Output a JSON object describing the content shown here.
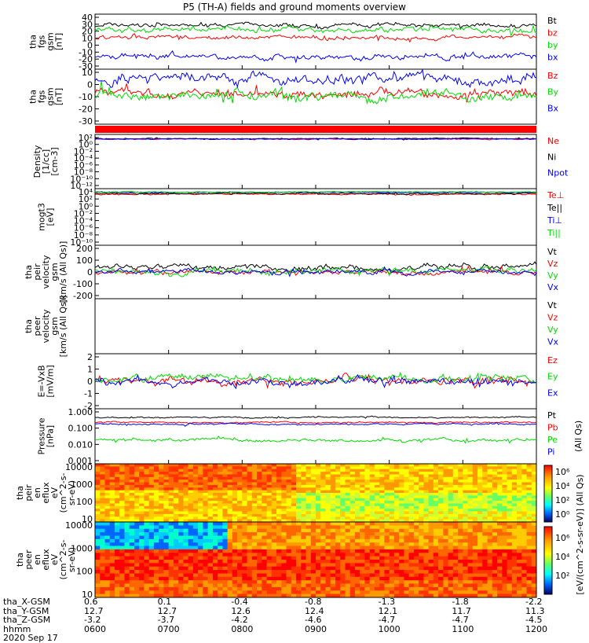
{
  "title": "P5 (TH-A) fields and ground moments overview",
  "colors": {
    "black": "#000000",
    "red": "#ff0000",
    "green": "#00dd00",
    "blue": "#0000ff"
  },
  "chart_data": [
    {
      "type": "line",
      "panel": "fgs",
      "ylabel": [
        "tha",
        "fgs",
        "gsm",
        "[nT]"
      ],
      "ylim": [
        -30,
        40
      ],
      "yticks": [
        "40",
        "30",
        "20",
        "10",
        "0",
        "-10",
        "-20",
        "-30"
      ],
      "series": [
        {
          "name": "Bt",
          "color": "black",
          "level": 26,
          "noise": 3
        },
        {
          "name": "bz",
          "color": "red",
          "level": 10,
          "noise": 3
        },
        {
          "name": "by",
          "color": "green",
          "level": 20,
          "noise": 4
        },
        {
          "name": "bx",
          "color": "blue",
          "level": -14,
          "noise": 4
        }
      ]
    },
    {
      "type": "line",
      "panel": "fgs_gse",
      "ylabel": [
        "tha",
        "fgs",
        "gsm",
        "[nT]"
      ],
      "ylim": [
        -35,
        10
      ],
      "yticks": [
        "10",
        "0",
        "-10",
        "-20",
        "-30"
      ],
      "series": [
        {
          "name": "Bz",
          "color": "red",
          "level": -10,
          "noise": 4
        },
        {
          "name": "By",
          "color": "green",
          "level": -12,
          "noise": 5
        },
        {
          "name": "Bx",
          "color": "blue",
          "level": 2,
          "noise": 5
        }
      ]
    },
    {
      "type": "line",
      "panel": "density",
      "ylabel": [
        "Density",
        "[1/cc]",
        "[cm-3]"
      ],
      "ylim": [
        -12,
        2
      ],
      "yticks": [
        "10²",
        "10⁰",
        "10⁻²",
        "10⁻⁴",
        "10⁻⁶",
        "10⁻⁸",
        "10⁻¹⁰",
        "10⁻¹²"
      ],
      "series": [
        {
          "name": "Ne",
          "color": "red",
          "level": 0.8,
          "noise": 0.15
        },
        {
          "name": "Ni",
          "color": "black",
          "level": 0.9,
          "noise": 0.15
        },
        {
          "name": "Npot",
          "color": "blue",
          "level": 0.85,
          "noise": 0.15
        }
      ]
    },
    {
      "type": "line",
      "panel": "temperature",
      "ylabel": [
        "mogt3",
        "[eV]"
      ],
      "ylim": [
        -10,
        4
      ],
      "yticks": [
        "10⁴",
        "10²",
        "10⁰",
        "10⁻²",
        "10⁻⁴",
        "10⁻⁶",
        "10⁻⁸",
        "10⁻¹⁰"
      ],
      "series": [
        {
          "name": "Te⊥",
          "color": "red",
          "level": 2.6,
          "noise": 0.2
        },
        {
          "name": "Te||",
          "color": "black",
          "level": 2.8,
          "noise": 0.2
        },
        {
          "name": "Ti⊥",
          "color": "blue",
          "level": 3.1,
          "noise": 0.1
        },
        {
          "name": "Ti||",
          "color": "green",
          "level": 3.2,
          "noise": 0.1
        }
      ]
    },
    {
      "type": "line",
      "panel": "peir_velocity",
      "ylabel": [
        "tha",
        "peir",
        "velocity",
        "gsm",
        "[km/s (All Qs)]"
      ],
      "ylim": [
        -200,
        200
      ],
      "yticks": [
        "200",
        "100",
        "0",
        "-100",
        "-200"
      ],
      "series": [
        {
          "name": "Vt",
          "color": "black",
          "level": 40,
          "noise": 25
        },
        {
          "name": "Vz",
          "color": "red",
          "level": 0,
          "noise": 20
        },
        {
          "name": "Vy",
          "color": "green",
          "level": 5,
          "noise": 25
        },
        {
          "name": "Vx",
          "color": "blue",
          "level": 0,
          "noise": 20
        }
      ]
    },
    {
      "type": "line",
      "panel": "peer_velocity",
      "ylabel": [
        "tha",
        "peer",
        "velocity",
        "gsm",
        "[km/s (All Qs)]"
      ],
      "ylim": [
        -200,
        200
      ],
      "yticks": [],
      "series": [
        {
          "name": "Vt",
          "color": "black"
        },
        {
          "name": "Vz",
          "color": "red"
        },
        {
          "name": "Vy",
          "color": "green"
        },
        {
          "name": "Vx",
          "color": "blue"
        }
      ]
    },
    {
      "type": "line",
      "panel": "efield",
      "ylabel": [
        "E=-VxB",
        "[mV/m]"
      ],
      "ylim": [
        -2.5,
        2.5
      ],
      "yticks": [
        "2",
        "1",
        "0",
        "-1",
        "-2"
      ],
      "series": [
        {
          "name": "Ez",
          "color": "red",
          "level": 0,
          "noise": 0.4
        },
        {
          "name": "Ey",
          "color": "green",
          "level": 0.3,
          "noise": 0.4
        },
        {
          "name": "Ex",
          "color": "blue",
          "level": 0,
          "noise": 0.4
        }
      ]
    },
    {
      "type": "line",
      "panel": "pressure",
      "ylabel": [
        "Pressure",
        "[nPa]"
      ],
      "ylim": [
        -3,
        0.2
      ],
      "log": true,
      "yticks": [
        "1.000",
        "0.100",
        "0.010",
        "0.001"
      ],
      "series": [
        {
          "name": "Pt",
          "color": "black",
          "level": -0.3,
          "noise": 0.05
        },
        {
          "name": "Pb",
          "color": "red",
          "level": -0.6,
          "noise": 0.05
        },
        {
          "name": "Pe",
          "color": "green",
          "level": -1.6,
          "noise": 0.1
        },
        {
          "name": "Pi",
          "color": "blue",
          "level": -0.7,
          "noise": 0.05
        }
      ],
      "side_label": "(All Qs)"
    },
    {
      "type": "heatmap",
      "panel": "peir_spectrogram",
      "ylabel": [
        "tha",
        "peir",
        "en",
        "eflux",
        "eV",
        "(cm^2-s-",
        "sr-eV)"
      ],
      "yticks": [
        "10000",
        "1000",
        "100",
        "10"
      ]
    },
    {
      "type": "heatmap",
      "panel": "peer_spectrogram",
      "ylabel": [
        "tha",
        "peer",
        "en",
        "eflux",
        "eV",
        "(cm^2-s-",
        "sr-eV)"
      ],
      "yticks": [
        "10000",
        "1000",
        "100",
        "10"
      ]
    }
  ],
  "colorbar": {
    "ticks1": [
      "10⁶",
      "10⁴",
      "10²",
      "10⁰"
    ],
    "ticks2": [
      "10⁶",
      "10⁴",
      "10²"
    ],
    "label": "[eV/(cm^2-s-sr-eV)] (All Qs)"
  },
  "footer": {
    "rows": [
      {
        "label": "tha_X-GSM",
        "values": [
          "0.6",
          "0.1",
          "-0.4",
          "-0.8",
          "-1.3",
          "-1.8",
          "-2.2"
        ]
      },
      {
        "label": "tha_Y-GSM",
        "values": [
          "12.7",
          "12.7",
          "12.6",
          "12.4",
          "12.1",
          "11.7",
          "11.3"
        ]
      },
      {
        "label": "tha_Z-GSM",
        "values": [
          "-3.2",
          "-3.7",
          "-4.2",
          "-4.6",
          "-4.7",
          "-4.7",
          "-4.5"
        ]
      },
      {
        "label": "hhmm",
        "values": [
          "0600",
          "0700",
          "0800",
          "0900",
          "1000",
          "1100",
          "1200"
        ]
      }
    ],
    "date": "2020 Sep 17"
  }
}
